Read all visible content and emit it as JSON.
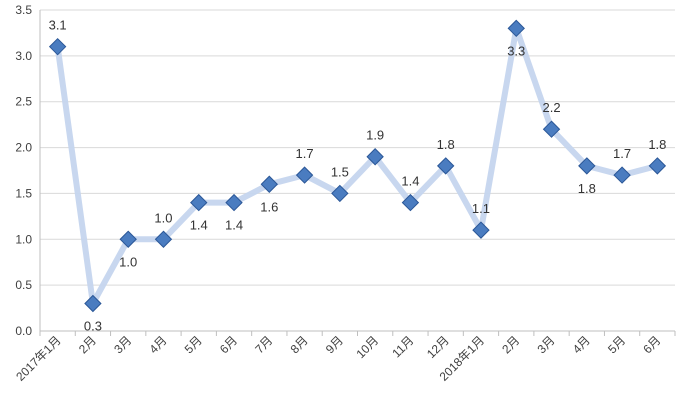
{
  "chart_data": {
    "type": "line",
    "title": "",
    "xlabel": "",
    "ylabel": "",
    "ylim": [
      0,
      3.5
    ],
    "ytick_step": 0.5,
    "yticks": [
      "0.0",
      "0.5",
      "1.0",
      "1.5",
      "2.0",
      "2.5",
      "3.0",
      "3.5"
    ],
    "grid": true,
    "legend": "none",
    "categories": [
      "2017年1月",
      "2月",
      "3月",
      "4月",
      "5月",
      "6月",
      "7月",
      "8月",
      "9月",
      "10月",
      "11月",
      "12月",
      "2018年1月",
      "2月",
      "3月",
      "4月",
      "5月",
      "6月"
    ],
    "series": [
      {
        "name": "",
        "values": [
          3.1,
          0.3,
          1.0,
          1.0,
          1.4,
          1.4,
          1.6,
          1.7,
          1.5,
          1.9,
          1.4,
          1.8,
          1.1,
          3.3,
          2.2,
          1.8,
          1.7,
          1.8
        ],
        "labels": [
          "3.1",
          "0.3",
          "1.0",
          "1.0",
          "1.4",
          "1.4",
          "1.6",
          "1.7",
          "1.5",
          "1.9",
          "1.4",
          "1.8",
          "1.1",
          "3.3",
          "2.2",
          "1.8",
          "1.7",
          "1.8"
        ],
        "label_positions": [
          "above",
          "below",
          "below",
          "above",
          "below",
          "below",
          "below",
          "above",
          "above",
          "above",
          "above",
          "above",
          "above",
          "below",
          "above",
          "below",
          "above",
          "above"
        ]
      }
    ],
    "colors": {
      "line": "#c5d5ee",
      "marker_fill": "#4a7cc0",
      "marker_edge": "#2b5797"
    }
  }
}
